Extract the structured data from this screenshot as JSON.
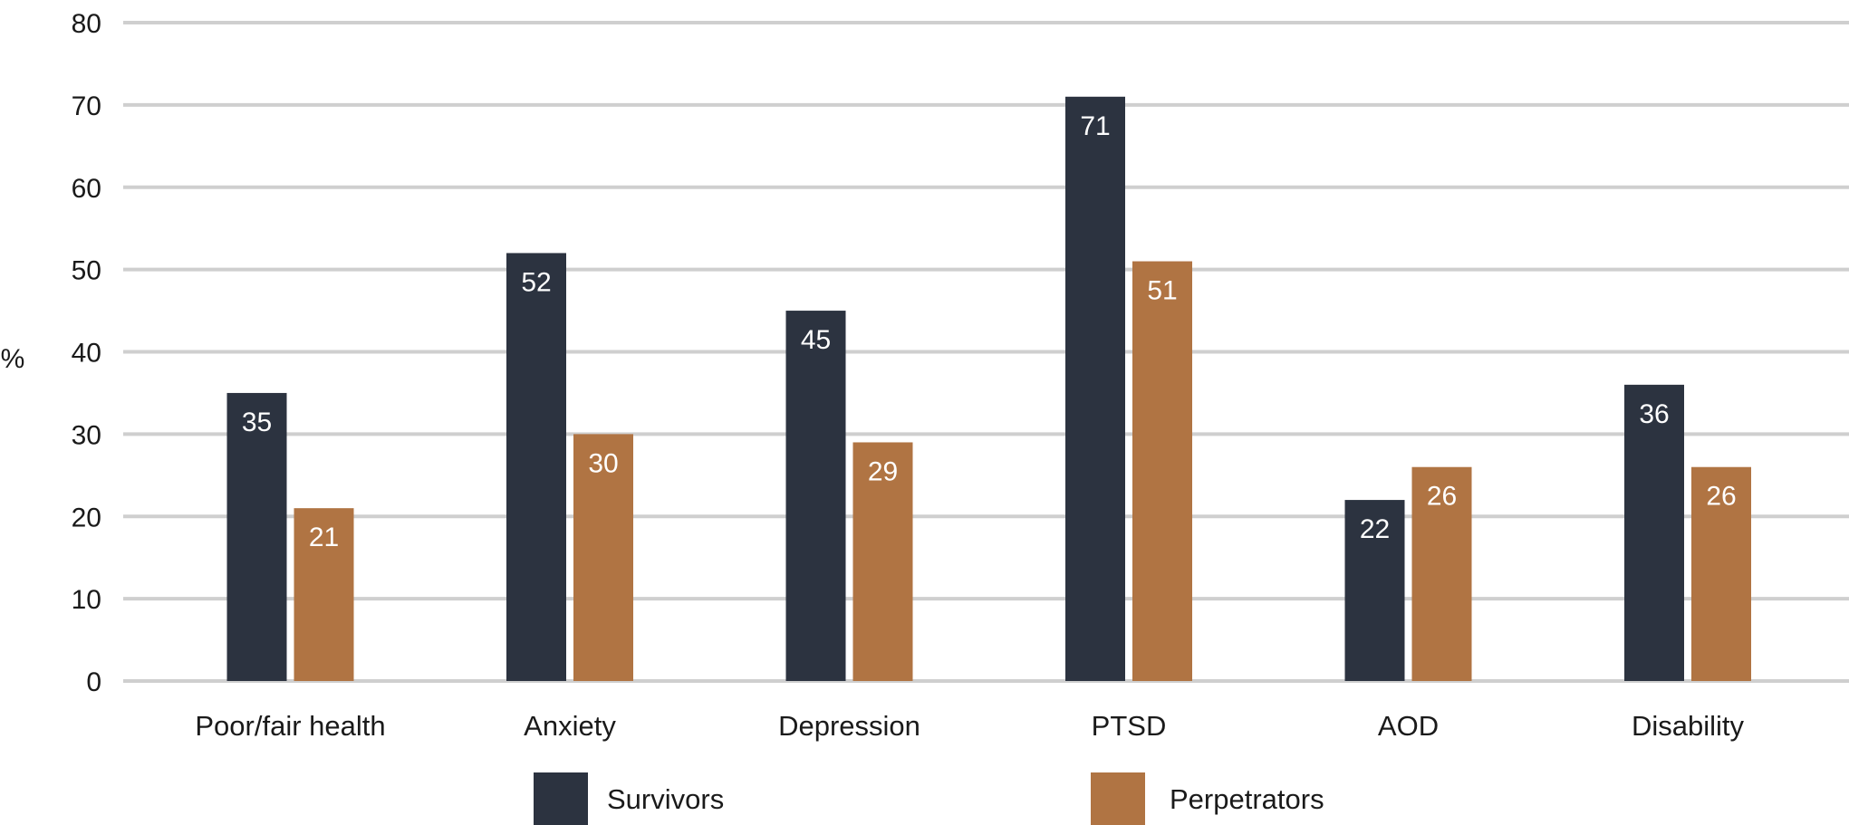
{
  "chart_data": {
    "type": "bar",
    "ylabel": "%",
    "xlabel": "",
    "ylim": [
      0,
      80
    ],
    "yticks": [
      0,
      10,
      20,
      30,
      40,
      50,
      60,
      70,
      80
    ],
    "grid": true,
    "legend_position": "bottom",
    "categories": [
      "Poor/fair health",
      "Anxiety",
      "Depression",
      "PTSD",
      "AOD",
      "Disability"
    ],
    "series": [
      {
        "name": "Survivors",
        "color": "#2c3340",
        "values": [
          35,
          52,
          45,
          71,
          22,
          36
        ]
      },
      {
        "name": "Perpetrators",
        "color": "#b07443",
        "values": [
          21,
          30,
          29,
          51,
          26,
          26
        ]
      }
    ]
  }
}
